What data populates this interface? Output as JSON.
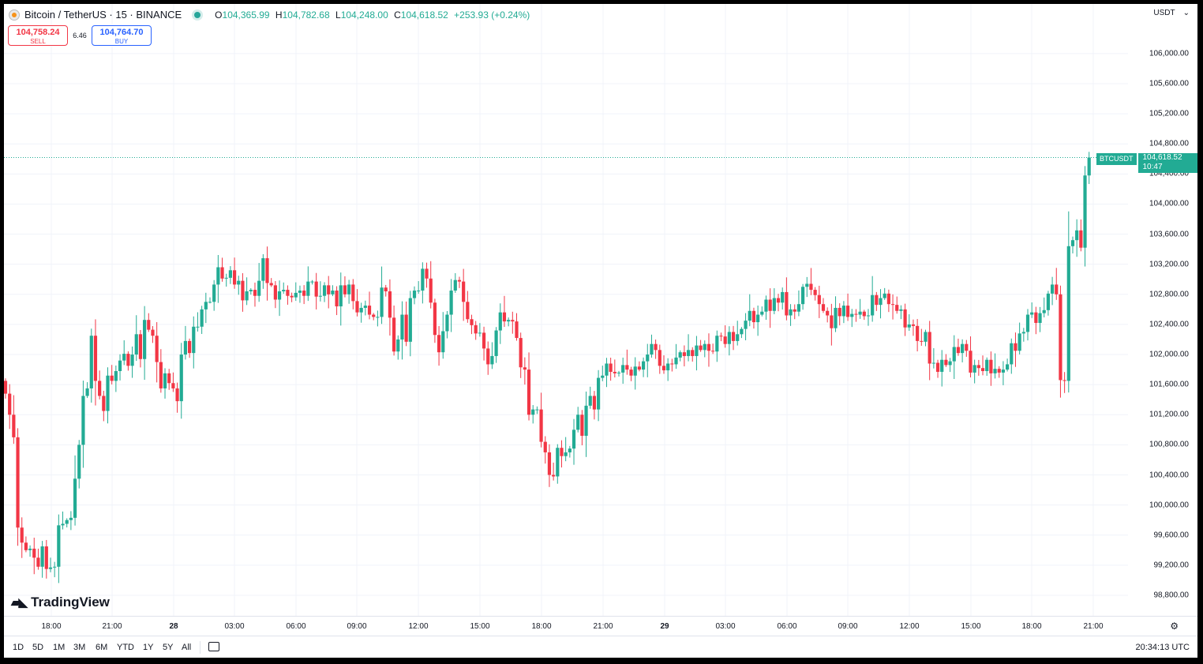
{
  "header": {
    "symbol": "Bitcoin / TetherUS · 15 · BINANCE",
    "ohlc": {
      "o_label": "O",
      "o": "104,365.99",
      "h_label": "H",
      "h": "104,782.68",
      "l_label": "L",
      "l": "104,248.00",
      "c_label": "C",
      "c": "104,618.52",
      "change": "+253.93 (+0.24%)"
    }
  },
  "trade": {
    "sell_price": "104,758.24",
    "sell_label": "SELL",
    "spread": "6.46",
    "buy_price": "104,764.70",
    "buy_label": "BUY"
  },
  "logo": "TradingView",
  "currency": "USDT",
  "price_tag": {
    "symbol": "BTCUSDT",
    "price": "104,618.52",
    "countdown": "10:47"
  },
  "bottom": {
    "ranges": [
      "1D",
      "5D",
      "1M",
      "3M",
      "6M",
      "YTD",
      "1Y",
      "5Y",
      "All"
    ],
    "clock": "20:34:13 UTC"
  },
  "colors": {
    "up": "#22ab94",
    "down": "#f23645",
    "grid": "#f0f3fa"
  },
  "chart_data": {
    "type": "candlestick",
    "interval": "15",
    "last_price": 104618.52,
    "y_ticks": [
      98800,
      99200,
      99600,
      100000,
      100400,
      100800,
      101200,
      101600,
      102000,
      102400,
      102800,
      103200,
      103600,
      104000,
      104400,
      104800,
      105200,
      105600,
      106000
    ],
    "y_tick_labels": [
      "98,800.00",
      "99,200.00",
      "99,600.00",
      "100,000.00",
      "100,400.00",
      "100,800.00",
      "101,200.00",
      "101,600.00",
      "102,000.00",
      "102,400.00",
      "102,800.00",
      "103,200.00",
      "103,600.00",
      "104,000.00",
      "104,400.00",
      "104,800.00",
      "105,200.00",
      "105,600.00",
      "106,000.00"
    ],
    "x_labels": [
      {
        "label": "18:00",
        "bold": false
      },
      {
        "label": "21:00",
        "bold": false
      },
      {
        "label": "28",
        "bold": true
      },
      {
        "label": "03:00",
        "bold": false
      },
      {
        "label": "06:00",
        "bold": false
      },
      {
        "label": "09:00",
        "bold": false
      },
      {
        "label": "12:00",
        "bold": false
      },
      {
        "label": "15:00",
        "bold": false
      },
      {
        "label": "18:00",
        "bold": false
      },
      {
        "label": "21:00",
        "bold": false
      },
      {
        "label": "29",
        "bold": true
      },
      {
        "label": "03:00",
        "bold": false
      },
      {
        "label": "06:00",
        "bold": false
      },
      {
        "label": "09:00",
        "bold": false
      },
      {
        "label": "12:00",
        "bold": false
      },
      {
        "label": "15:00",
        "bold": false
      },
      {
        "label": "18:00",
        "bold": false
      },
      {
        "label": "21:00",
        "bold": false
      }
    ],
    "closes": [
      101480,
      101200,
      100900,
      99700,
      99500,
      99400,
      99420,
      99300,
      99180,
      99450,
      99150,
      99170,
      99180,
      99730,
      99750,
      99800,
      99830,
      100350,
      100800,
      101450,
      101550,
      102250,
      101650,
      101450,
      101250,
      101720,
      101650,
      101780,
      101920,
      102010,
      101850,
      102000,
      102270,
      101940,
      102460,
      102330,
      102250,
      101900,
      101550,
      101750,
      101620,
      101550,
      101380,
      102000,
      102180,
      102020,
      102370,
      102370,
      102600,
      102700,
      102700,
      102930,
      103160,
      103010,
      103020,
      103120,
      102930,
      102980,
      102720,
      102840,
      102860,
      102780,
      102980,
      103280,
      102950,
      102920,
      102730,
      102840,
      102860,
      102780,
      102760,
      102820,
      102850,
      102780,
      102970,
      102970,
      102770,
      102780,
      102920,
      102800,
      102850,
      102640,
      102920,
      102800,
      102930,
      102710,
      102560,
      102620,
      102650,
      102530,
      102500,
      102500,
      102890,
      102840,
      102490,
      102040,
      102200,
      102530,
      102170,
      102750,
      102850,
      102850,
      103140,
      103010,
      102690,
      102260,
      102030,
      102310,
      102530,
      102850,
      102990,
      102970,
      102700,
      102470,
      102390,
      102280,
      102290,
      102080,
      101870,
      101980,
      102320,
      102560,
      102440,
      102460,
      102440,
      102220,
      101830,
      101800,
      101200,
      101270,
      101270,
      100840,
      100700,
      100400,
      100380,
      100760,
      100650,
      100700,
      100750,
      101000,
      101200,
      100920,
      101320,
      101450,
      101270,
      101690,
      101720,
      101880,
      101770,
      101750,
      101760,
      101860,
      101800,
      101720,
      101840,
      101800,
      101910,
      102000,
      102140,
      102060,
      101850,
      101790,
      101880,
      101870,
      101960,
      102030,
      101980,
      102060,
      101980,
      102120,
      102060,
      102140,
      102050,
      102040,
      102250,
      102240,
      102140,
      102300,
      102180,
      102270,
      102340,
      102450,
      102580,
      102430,
      102530,
      102570,
      102730,
      102580,
      102750,
      102690,
      102830,
      102520,
      102600,
      102570,
      102670,
      102900,
      102940,
      102860,
      102790,
      102670,
      102580,
      102520,
      102350,
      102620,
      102510,
      102650,
      102500,
      102540,
      102530,
      102570,
      102510,
      102520,
      102790,
      102660,
      102750,
      102810,
      102670,
      102660,
      102580,
      102600,
      102360,
      102400,
      102380,
      102180,
      102170,
      102300,
      101880,
      101890,
      101770,
      101930,
      101860,
      101910,
      102100,
      102020,
      102140,
      102050,
      101760,
      101860,
      101820,
      101780,
      101930,
      101750,
      101810,
      101760,
      101800,
      101870,
      102150,
      102050,
      102280,
      102300,
      102530,
      102560,
      102420,
      102550,
      102590,
      102810,
      102930,
      102800,
      101660,
      101650,
      103440,
      103520,
      103650,
      103420,
      104380,
      104618
    ]
  }
}
